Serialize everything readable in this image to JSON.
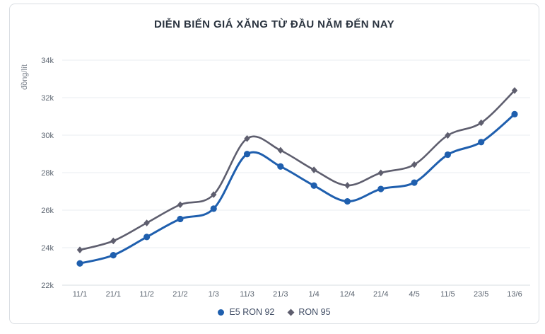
{
  "card": {
    "title": "DIỄN BIẾN GIÁ XĂNG TỪ ĐẦU NĂM ĐẾN NAY"
  },
  "chart_data": {
    "type": "line",
    "title": "DIỄN BIẾN GIÁ XĂNG TỪ ĐẦU NĂM ĐẾN NAY",
    "xlabel": "",
    "ylabel": "đồng/lít",
    "categories": [
      "11/1",
      "21/1",
      "11/2",
      "21/2",
      "1/3",
      "11/3",
      "21/3",
      "1/4",
      "12/4",
      "21/4",
      "4/5",
      "11/5",
      "23/5",
      "13/6"
    ],
    "series": [
      {
        "name": "E5 RON 92",
        "color": "#1f5fae",
        "marker": "circle",
        "unit": "k đồng/lít",
        "values": [
          23.16,
          23.6,
          24.57,
          25.53,
          26.08,
          28.99,
          28.33,
          27.31,
          26.47,
          27.13,
          27.47,
          28.96,
          29.63,
          31.12
        ]
      },
      {
        "name": "RON 95",
        "color": "#5e5e6e",
        "marker": "diamond",
        "unit": "k đồng/lít",
        "values": [
          23.88,
          24.36,
          25.32,
          26.29,
          26.83,
          29.82,
          29.19,
          28.15,
          27.32,
          27.99,
          28.43,
          29.99,
          30.66,
          32.38
        ]
      }
    ],
    "ylim": [
      22,
      34
    ],
    "ytick_step": 2,
    "ytick_labels": [
      "22k",
      "24k",
      "26k",
      "28k",
      "30k",
      "32k",
      "34k"
    ],
    "grid": true,
    "legend_position": "bottom",
    "colors": {
      "grid_line": "#e9edf1",
      "axis_line": "#d7dce2",
      "tick_text": "#5b6470",
      "title_text": "#2a333f",
      "legend_text": "#3d4a62"
    }
  }
}
